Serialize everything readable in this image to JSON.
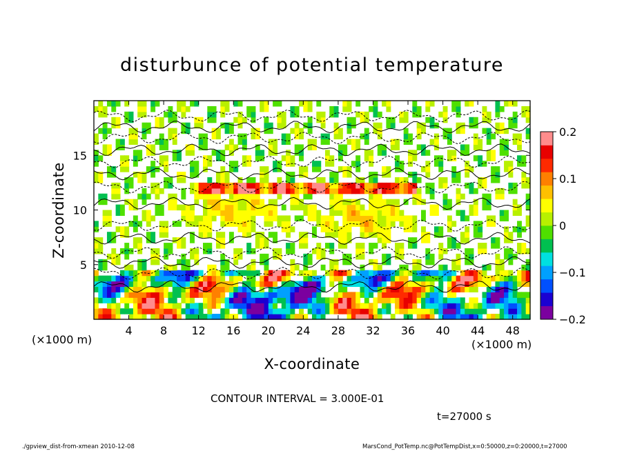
{
  "chart_data": {
    "type": "heatmap",
    "title": "disturbunce of potential temperature",
    "xlabel": "X-coordinate",
    "ylabel": "Z-coordinate",
    "x_unit": "(×1000 m)",
    "y_unit": "(×1000 m)",
    "xlim": [
      0,
      50
    ],
    "ylim": [
      0,
      20
    ],
    "x_ticks": [
      "4",
      "8",
      "12",
      "16",
      "20",
      "24",
      "28",
      "32",
      "36",
      "40",
      "44",
      "48"
    ],
    "y_ticks": [
      "5",
      "10",
      "15"
    ],
    "colorbar_ticks": [
      "0.2",
      "0.1",
      "0",
      "−0.1",
      "−0.2"
    ],
    "colorbar_range": [
      -0.2,
      0.2
    ],
    "colormap": [
      "#7b009f",
      "#1b00d2",
      "#0050ff",
      "#00a0ff",
      "#00e0e0",
      "#00c050",
      "#4fe000",
      "#b8f000",
      "#ffff00",
      "#ffc000",
      "#ff8000",
      "#ff2a00",
      "#e80000",
      "#ff8c8c"
    ],
    "contour_interval": "CONTOUR INTERVAL = 3.000E-01",
    "time_label": "t=27000 s"
  },
  "footer": {
    "left": "./gpview_dist-from-xmean  2010-12-08",
    "right": "MarsCond_PotTemp.nc@PotTempDist,x=0:50000,z=0:20000,t=27000"
  }
}
